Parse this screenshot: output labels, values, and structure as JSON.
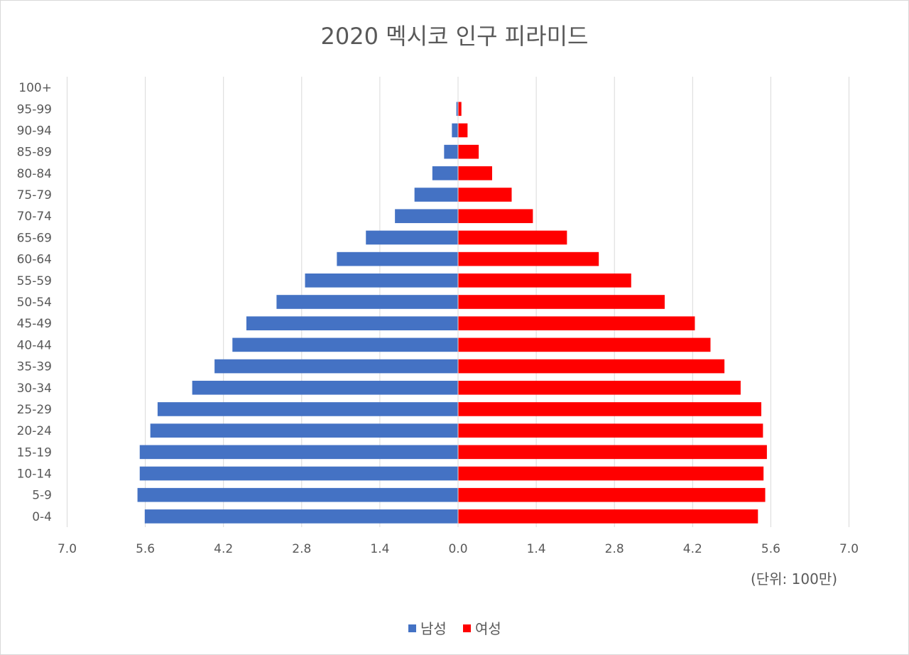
{
  "chart_data": {
    "type": "bar",
    "title": "2020 멕시코 인구 피라미드",
    "unit_label": "(단위: 100만)",
    "categories": [
      "0-4",
      "5-9",
      "10-14",
      "15-19",
      "20-24",
      "25-29",
      "30-34",
      "35-39",
      "40-44",
      "45-49",
      "50-54",
      "55-59",
      "60-64",
      "65-69",
      "70-74",
      "75-79",
      "80-84",
      "85-89",
      "90-94",
      "95-99",
      "100+"
    ],
    "series": [
      {
        "name": "남성",
        "color": "#4472c4",
        "side": "left",
        "values": [
          5.61,
          5.74,
          5.7,
          5.7,
          5.51,
          5.38,
          4.76,
          4.36,
          4.04,
          3.79,
          3.25,
          2.74,
          2.17,
          1.65,
          1.13,
          0.78,
          0.46,
          0.25,
          0.11,
          0.03,
          0.0
        ]
      },
      {
        "name": "여성",
        "color": "#ff0000",
        "side": "right",
        "values": [
          5.37,
          5.5,
          5.47,
          5.53,
          5.46,
          5.43,
          5.06,
          4.77,
          4.52,
          4.24,
          3.7,
          3.1,
          2.52,
          1.95,
          1.34,
          0.96,
          0.61,
          0.37,
          0.17,
          0.06,
          0.0
        ]
      }
    ],
    "x_ticks": [
      "7.0",
      "5.6",
      "4.2",
      "2.8",
      "1.4",
      "0.0",
      "1.4",
      "2.8",
      "4.2",
      "5.6",
      "7.0"
    ],
    "xlim": [
      -7,
      7
    ],
    "grid": true,
    "legend_position": "bottom"
  }
}
